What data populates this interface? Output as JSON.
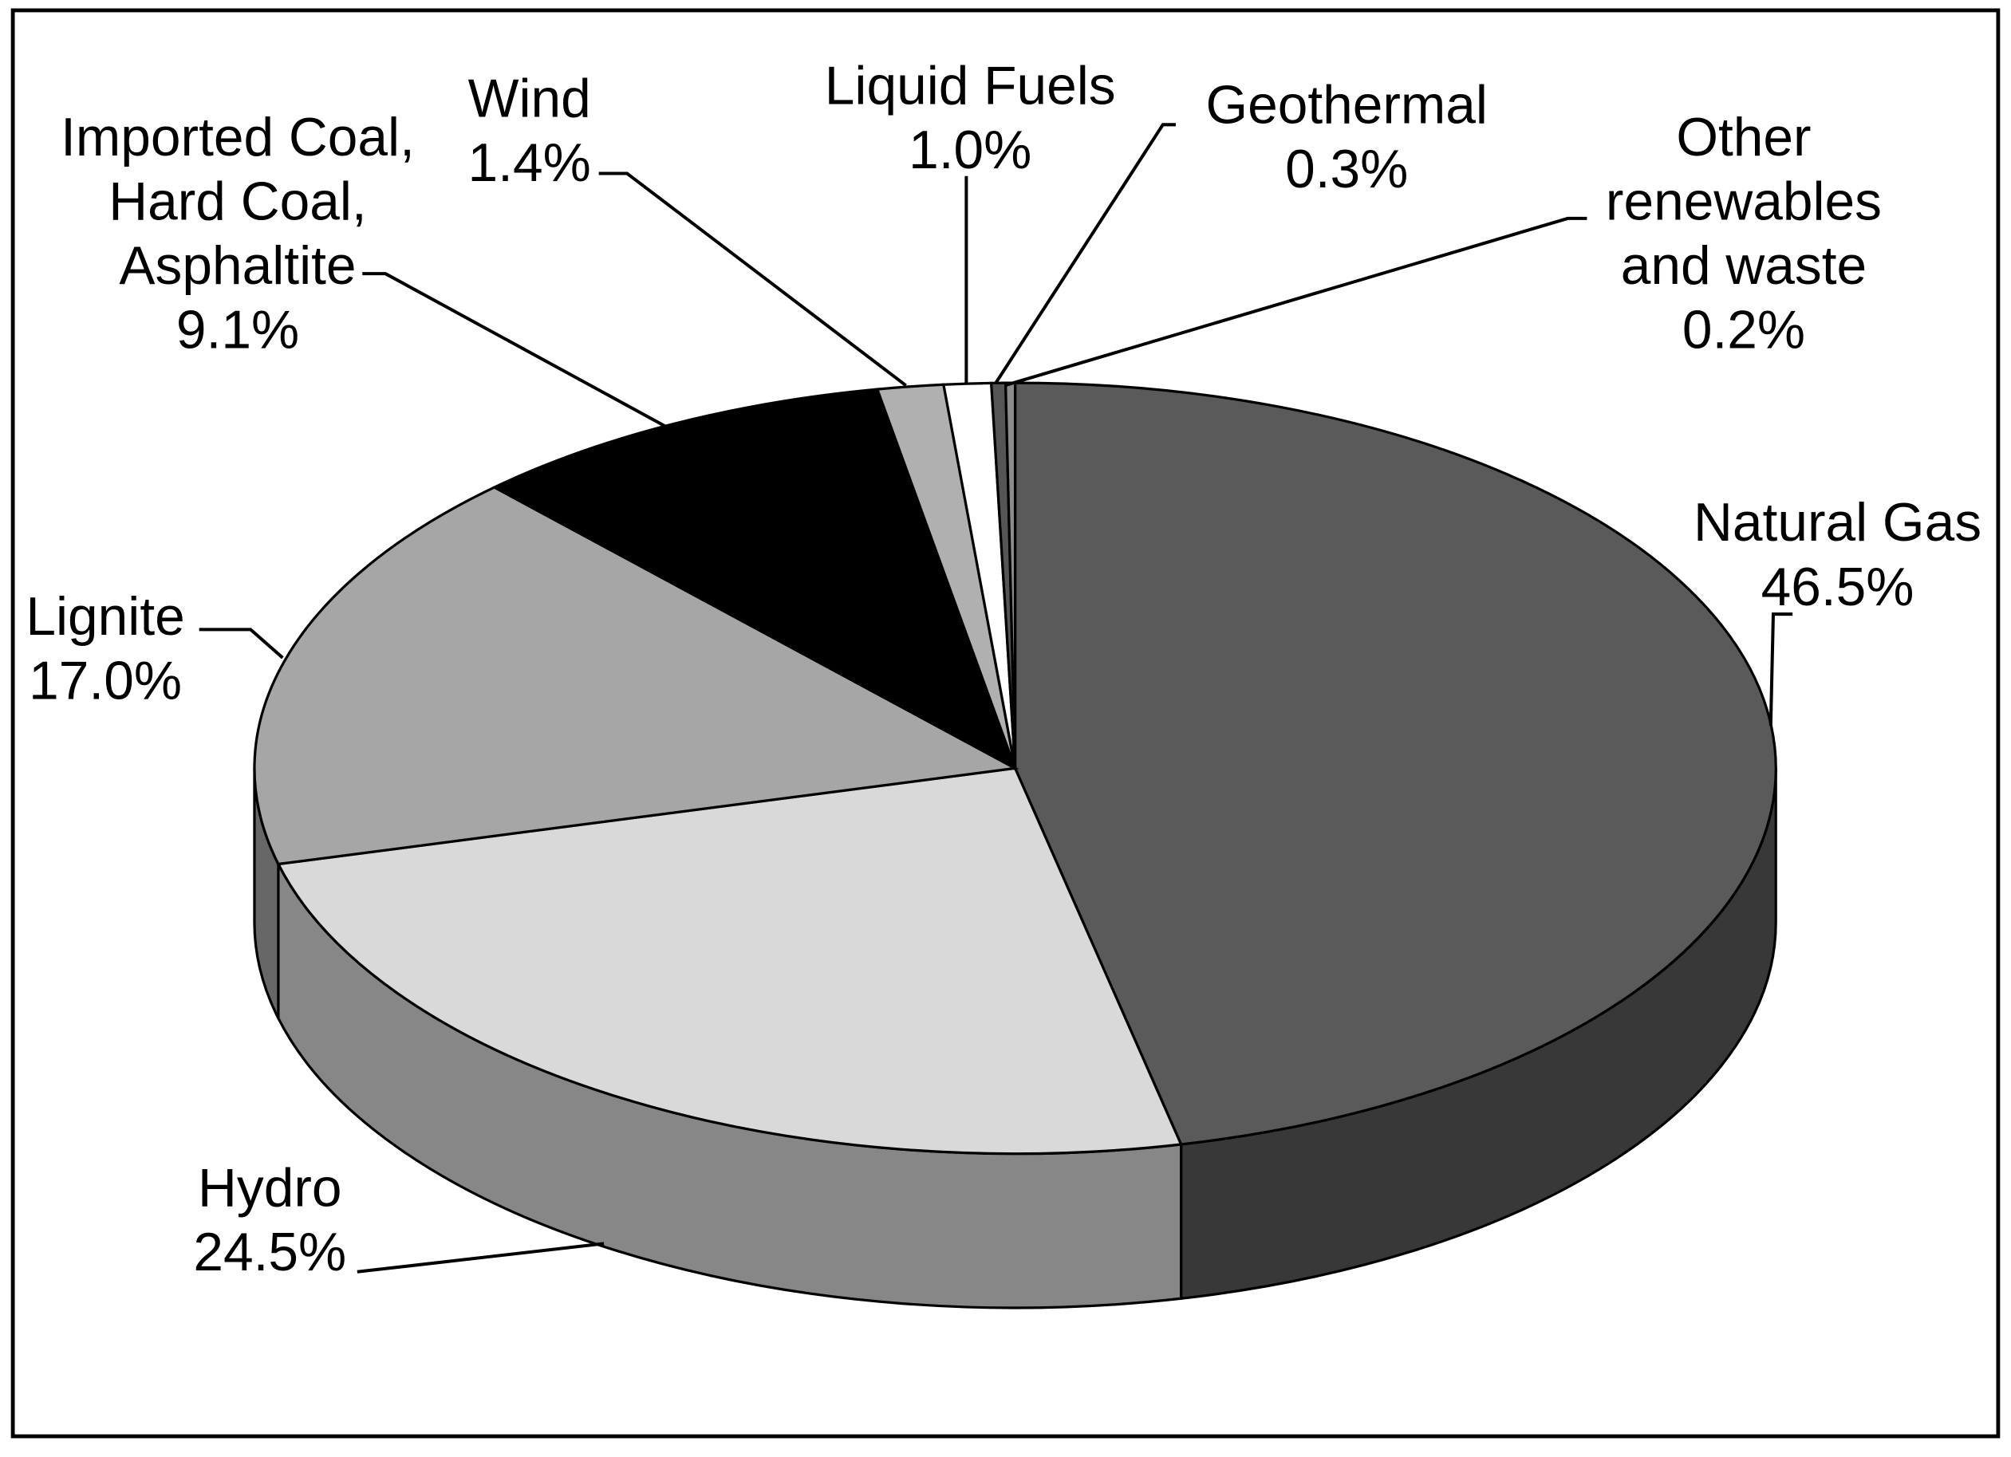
{
  "chart_data": {
    "type": "pie",
    "categories": [
      "Natural Gas",
      "Hydro",
      "Lignite",
      "Imported Coal, Hard Coal, Asphaltite",
      "Wind",
      "Liquid Fuels",
      "Geothermal",
      "Other renewables and waste"
    ],
    "values": [
      46.5,
      24.5,
      17.0,
      9.1,
      1.4,
      1.0,
      0.3,
      0.2
    ],
    "value_labels": [
      "46.5%",
      "24.5%",
      "17.0%",
      "9.1%",
      "1.4%",
      "1.0%",
      "0.3%",
      "0.2%"
    ],
    "colors": [
      "#5a5a5a",
      "#d9d9d9",
      "#a6a6a6",
      "#000000",
      "#b0b0b0",
      "#ffffff",
      "#555555",
      "#8c8c8c"
    ]
  }
}
